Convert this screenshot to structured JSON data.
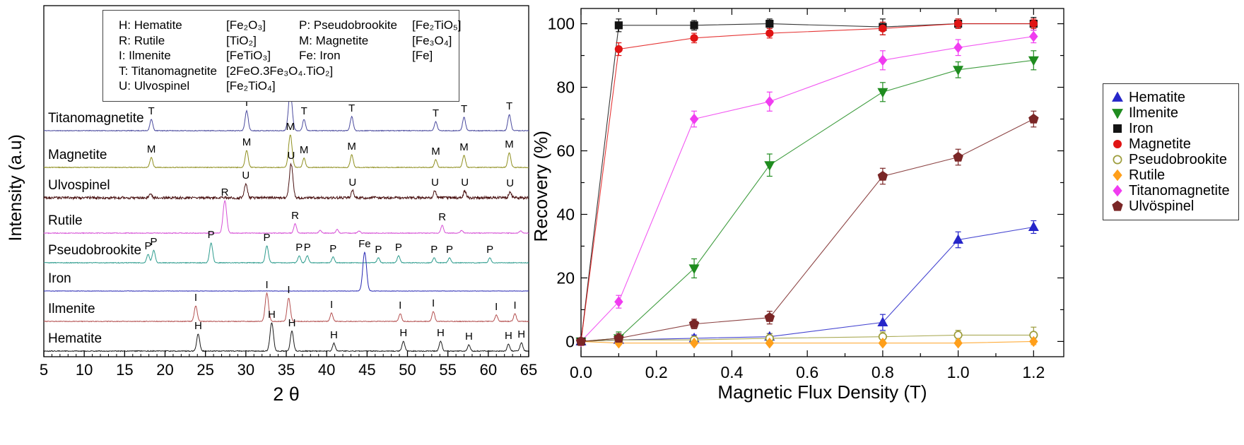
{
  "chart_data": [
    {
      "type": "line",
      "xlabel": "2 θ",
      "ylabel": "Intensity (a.u)",
      "xlim": [
        5,
        65
      ],
      "x_tick_vals": [
        5,
        10,
        15,
        20,
        25,
        30,
        35,
        40,
        45,
        50,
        55,
        60,
        65
      ],
      "x_ticks": [
        "5",
        "10",
        "15",
        "20",
        "25",
        "30",
        "35",
        "40",
        "45",
        "50",
        "55",
        "60",
        "65"
      ],
      "legend": {
        "col1": [
          {
            "label": "H: Hematite",
            "formula": "[Fe₂O₃]"
          },
          {
            "label": "R: Rutile",
            "formula": "[TiO₂]"
          },
          {
            "label": "I: Ilmenite",
            "formula": "[FeTiO₃]"
          },
          {
            "label": "T: Titanomagnetite",
            "formula": "[2FeO.3Fe₃O₄.TiO₂]"
          },
          {
            "label": "U: Ulvospinel",
            "formula": "[Fe₂TiO₄]"
          }
        ],
        "col2": [
          {
            "label": "P: Pseudobrookite",
            "formula": "[Fe₂TiO₅]"
          },
          {
            "label": "M: Magnetite",
            "formula": "[Fe₃O₄]"
          },
          {
            "label": "Fe: Iron",
            "formula": "[Fe]"
          }
        ]
      },
      "series": [
        {
          "name": "Titanomagnetite",
          "color": "#4a4a9e",
          "noise": 0.5,
          "peaks": [
            [
              18.3,
              16,
              "T"
            ],
            [
              30.1,
              28,
              "T"
            ],
            [
              35.5,
              55,
              "T"
            ],
            [
              37.2,
              16,
              "T"
            ],
            [
              43.1,
              20,
              "T"
            ],
            [
              53.5,
              13,
              "T"
            ],
            [
              57.0,
              19,
              "T"
            ],
            [
              62.6,
              23,
              "T"
            ]
          ]
        },
        {
          "name": "Magnetite",
          "color": "#8f8f1f",
          "noise": 0.5,
          "peaks": [
            [
              18.3,
              14,
              "M"
            ],
            [
              30.1,
              24,
              "M"
            ],
            [
              35.5,
              46,
              "M"
            ],
            [
              37.2,
              13,
              "M"
            ],
            [
              43.1,
              18,
              "M"
            ],
            [
              53.5,
              11,
              "M"
            ],
            [
              57.0,
              17,
              "M"
            ],
            [
              62.6,
              21,
              "M"
            ]
          ]
        },
        {
          "name": "Ulvospinel",
          "color": "#4a1212",
          "noise": 1.8,
          "peaks": [
            [
              18.2,
              5,
              null
            ],
            [
              30.0,
              20,
              "U"
            ],
            [
              35.6,
              48,
              "U"
            ],
            [
              43.2,
              10,
              "U"
            ],
            [
              53.4,
              10,
              "U"
            ],
            [
              57.1,
              10,
              "U"
            ],
            [
              62.7,
              9,
              "U"
            ]
          ]
        },
        {
          "name": "Rutile",
          "color": "#d650d6",
          "noise": 0.5,
          "peaks": [
            [
              27.4,
              46,
              "R"
            ],
            [
              36.1,
              13,
              "R"
            ],
            [
              39.2,
              4,
              null
            ],
            [
              41.3,
              5,
              null
            ],
            [
              44.0,
              3,
              null
            ],
            [
              54.3,
              11,
              "R"
            ],
            [
              56.7,
              4,
              null
            ],
            [
              64.0,
              3,
              null
            ]
          ]
        },
        {
          "name": "Pseudobrookite",
          "color": "#2e9c8e",
          "noise": 0.5,
          "peaks": [
            [
              17.9,
              12,
              "P"
            ],
            [
              18.6,
              18,
              "P"
            ],
            [
              25.7,
              28,
              "P"
            ],
            [
              32.6,
              24,
              "P"
            ],
            [
              36.6,
              10,
              "P"
            ],
            [
              37.6,
              10,
              "P"
            ],
            [
              40.8,
              8,
              "P"
            ],
            [
              46.4,
              7,
              "P"
            ],
            [
              48.9,
              10,
              "P"
            ],
            [
              53.3,
              7,
              "P"
            ],
            [
              55.2,
              7,
              "P"
            ],
            [
              60.2,
              7,
              "P"
            ]
          ]
        },
        {
          "name": "Iron",
          "color": "#2828b4",
          "noise": 0.25,
          "peaks": [
            [
              44.7,
              55,
              "Fe"
            ]
          ]
        },
        {
          "name": "Ilmenite",
          "color": "#b45050",
          "noise": 0.5,
          "peaks": [
            [
              23.8,
              22,
              "I"
            ],
            [
              32.6,
              40,
              "I"
            ],
            [
              35.3,
              33,
              "I"
            ],
            [
              40.6,
              12,
              "I"
            ],
            [
              49.1,
              11,
              "I"
            ],
            [
              53.2,
              14,
              "I"
            ],
            [
              61.0,
              9,
              "I"
            ],
            [
              63.3,
              11,
              "I"
            ]
          ]
        },
        {
          "name": "Hematite",
          "color": "#1a1a1a",
          "noise": 0.6,
          "peaks": [
            [
              24.1,
              24,
              "H"
            ],
            [
              33.2,
              40,
              "H"
            ],
            [
              35.7,
              28,
              "H"
            ],
            [
              40.9,
              11,
              "H"
            ],
            [
              49.5,
              14,
              "H"
            ],
            [
              54.1,
              14,
              "H"
            ],
            [
              57.6,
              9,
              "H"
            ],
            [
              62.5,
              10,
              "H"
            ],
            [
              64.1,
              12,
              "H"
            ]
          ]
        }
      ]
    },
    {
      "type": "line",
      "xlabel": "Magnetic Flux Density (T)",
      "ylabel": "Recovery (%)",
      "xlim": [
        0,
        1.28
      ],
      "ylim": [
        -4.8,
        104.8
      ],
      "x": [
        0,
        0.1,
        0.3,
        0.5,
        0.8,
        1.0,
        1.2
      ],
      "x_tick_vals": [
        0,
        0.2,
        0.4,
        0.6,
        0.8,
        1.0,
        1.2
      ],
      "x_ticks": [
        "0.0",
        "0.2",
        "0.4",
        "0.6",
        "0.8",
        "1.0",
        "1.2"
      ],
      "y_tick_vals": [
        0,
        20,
        40,
        60,
        80,
        100
      ],
      "y_ticks": [
        "0",
        "20",
        "40",
        "60",
        "80",
        "100"
      ],
      "legend_position": "right",
      "series": [
        {
          "name": "Hematite",
          "marker": "triangle-up",
          "color": "#2626c9",
          "values": [
            0,
            0.5,
            1,
            1.5,
            6,
            32,
            36
          ],
          "errors": [
            0,
            1,
            1,
            1,
            2.5,
            2.5,
            2
          ]
        },
        {
          "name": "Ilmenite",
          "marker": "triangle-down",
          "color": "#1f8c1f",
          "values": [
            0,
            1,
            23,
            55.5,
            78.5,
            85.5,
            88.5
          ],
          "errors": [
            0,
            2,
            3,
            3.5,
            3,
            2.5,
            3
          ]
        },
        {
          "name": "Iron",
          "marker": "square",
          "color": "#141414",
          "values": [
            0,
            99.5,
            99.5,
            100,
            99,
            100,
            100
          ],
          "errors": [
            0,
            2,
            1.5,
            1.5,
            2.5,
            1.5,
            2
          ]
        },
        {
          "name": "Magnetite",
          "marker": "circle",
          "color": "#e01414",
          "values": [
            0,
            92,
            95.5,
            97,
            98.5,
            100,
            100
          ],
          "errors": [
            0,
            2,
            1.5,
            1.5,
            2,
            1.5,
            1.5
          ]
        },
        {
          "name": "Pseudobrookite",
          "marker": "circle-open",
          "color": "#9c9c3a",
          "values": [
            0,
            0.5,
            0.5,
            1,
            1.5,
            2,
            2
          ],
          "errors": [
            0,
            1,
            1,
            1.5,
            1.5,
            1.5,
            2.5
          ]
        },
        {
          "name": "Rutile",
          "marker": "diamond",
          "color": "#ff9f1a",
          "values": [
            0,
            -0.5,
            -0.5,
            -0.5,
            -0.5,
            -0.5,
            0
          ],
          "errors": [
            0,
            0.5,
            0.5,
            0.5,
            0.5,
            0.5,
            1
          ]
        },
        {
          "name": "Titanomagnetite",
          "marker": "diamond",
          "color": "#f03cf0",
          "values": [
            0,
            12.5,
            70,
            75.5,
            88.5,
            92.5,
            96
          ],
          "errors": [
            0,
            2,
            2.5,
            3,
            3,
            2.5,
            2
          ]
        },
        {
          "name": "Ulvöspinel",
          "marker": "pentagon",
          "color": "#7a2626",
          "values": [
            0,
            1,
            5.5,
            7.5,
            52,
            58,
            70
          ],
          "errors": [
            0,
            1.5,
            1.5,
            2,
            2.5,
            2.5,
            2.5
          ]
        }
      ]
    }
  ]
}
